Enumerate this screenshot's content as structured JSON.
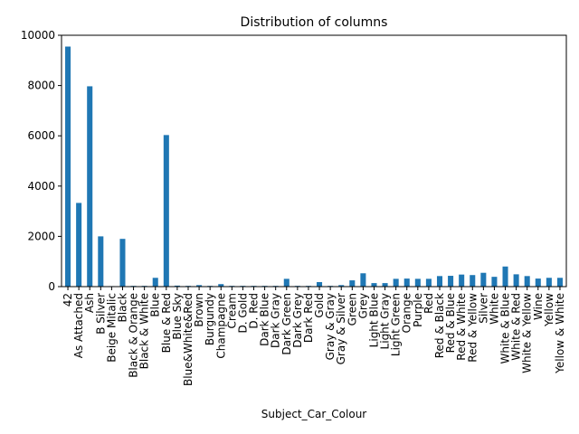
{
  "chart_data": {
    "type": "bar",
    "title": "Distribution of columns",
    "xlabel": "Subject_Car_Colour",
    "ylabel": "",
    "ylim": [
      0,
      10000
    ],
    "yticks": [
      0,
      2000,
      4000,
      6000,
      8000,
      10000
    ],
    "grid": false,
    "legend": "none",
    "bar_color": "#1f77b4",
    "categories": [
      "42",
      "As Attached",
      "Ash",
      "B Silver",
      "Beige Mitalic",
      "Black",
      "Black & Orange",
      "Black & White",
      "Blue",
      "Blue & Red",
      "Blue Sky",
      "Blue&White&Red",
      "Brown",
      "Burgundy",
      "Champagne",
      "Cream",
      "D. Gold",
      "D. Red",
      "Dark Blue",
      "Dark Gray",
      "Dark Green",
      "Dark Grey",
      "Dark Red",
      "Gold",
      "Gray & Gray",
      "Gray & Silver",
      "Green",
      "Grey",
      "Light Blue",
      "Light Gray",
      "Light Green",
      "Orange",
      "Purple",
      "Red",
      "Red & Black",
      "Red & Blue",
      "Red & White",
      "Red & Yellow",
      "Silver",
      "White",
      "White & Blue",
      "White & Red",
      "White & Yellow",
      "Wine",
      "Yellow",
      "Yellow & White"
    ],
    "values": [
      9550,
      3330,
      7970,
      2000,
      20,
      1900,
      30,
      30,
      350,
      6030,
      40,
      30,
      60,
      30,
      100,
      30,
      30,
      30,
      30,
      30,
      310,
      30,
      30,
      180,
      30,
      60,
      250,
      530,
      140,
      140,
      310,
      320,
      310,
      310,
      420,
      430,
      480,
      460,
      550,
      390,
      800,
      490,
      420,
      320,
      350,
      350
    ]
  }
}
